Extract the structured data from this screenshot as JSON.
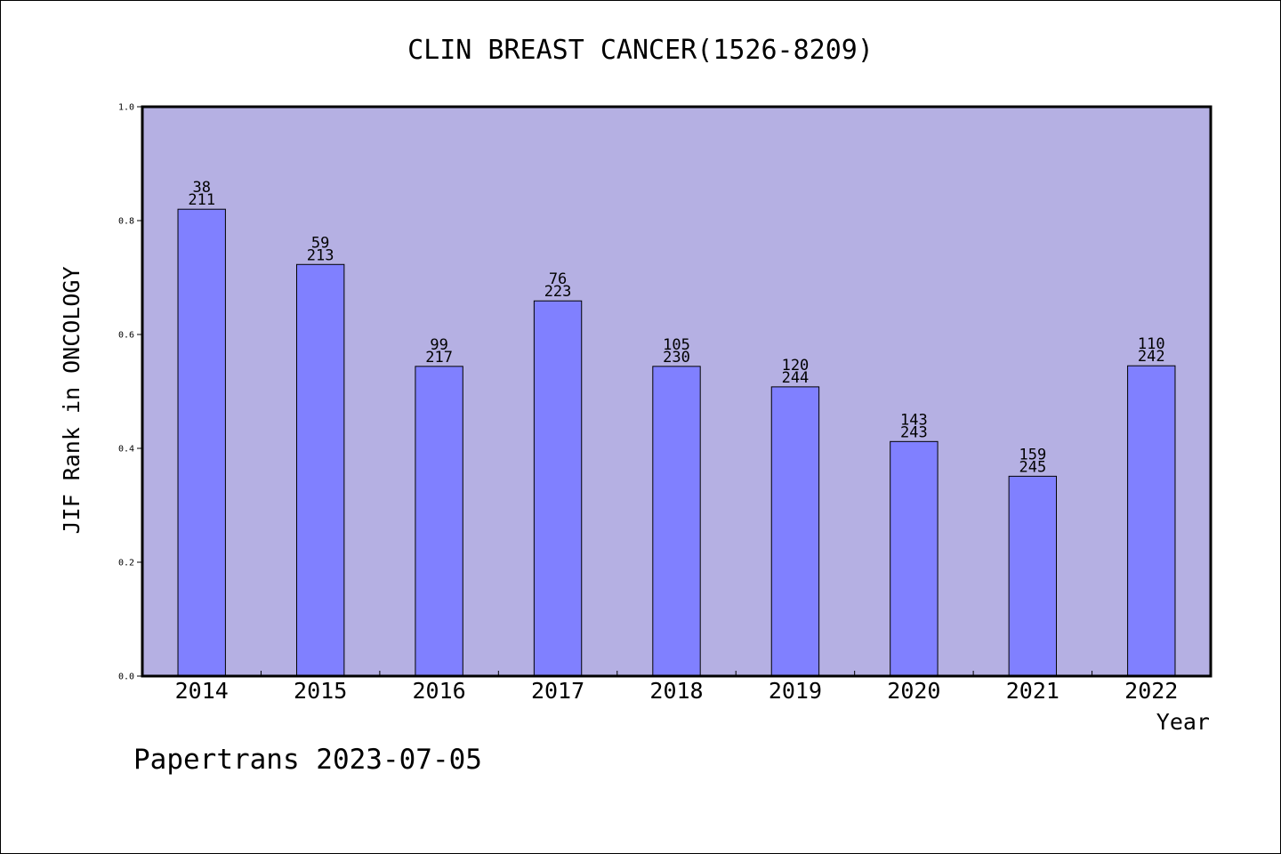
{
  "chart_data": {
    "type": "bar",
    "title": "CLIN BREAST CANCER(1526-8209)",
    "xlabel": "Year",
    "ylabel": "JIF Rank in ONCOLOGY",
    "ylim": [
      0,
      1.0
    ],
    "yticks": [
      "0.0",
      "0.2",
      "0.4",
      "0.6",
      "0.8",
      "1.0"
    ],
    "grid": false,
    "categories": [
      "2014",
      "2015",
      "2016",
      "2017",
      "2018",
      "2019",
      "2020",
      "2021",
      "2022"
    ],
    "values": [
      0.82,
      0.723,
      0.544,
      0.659,
      0.544,
      0.508,
      0.412,
      0.351,
      0.545
    ],
    "labels": [
      {
        "rank": "38",
        "total": "211"
      },
      {
        "rank": "59",
        "total": "213"
      },
      {
        "rank": "99",
        "total": "217"
      },
      {
        "rank": "76",
        "total": "223"
      },
      {
        "rank": "105",
        "total": "230"
      },
      {
        "rank": "120",
        "total": "244"
      },
      {
        "rank": "143",
        "total": "243"
      },
      {
        "rank": "159",
        "total": "245"
      },
      {
        "rank": "110",
        "total": "242"
      }
    ],
    "colors": {
      "plot_bg": "#b5b0e3",
      "bar": "#8080ff",
      "bar_edge": "#000000"
    }
  },
  "footer": {
    "text": "Papertrans 2023-07-05"
  }
}
